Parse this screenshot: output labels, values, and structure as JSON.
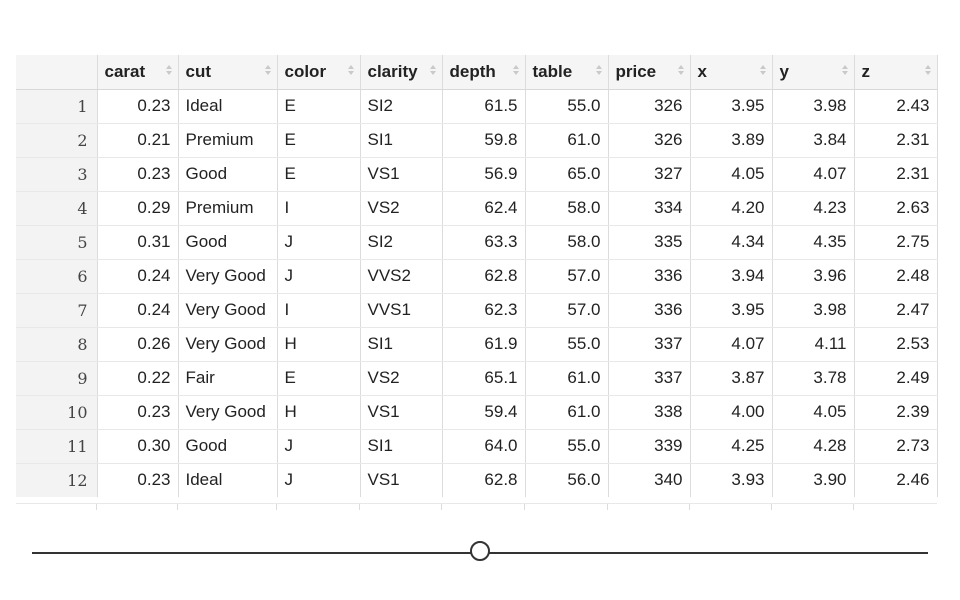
{
  "table": {
    "columns": [
      "carat",
      "cut",
      "color",
      "clarity",
      "depth",
      "table",
      "price",
      "x",
      "y",
      "z"
    ],
    "rows": [
      [
        "1",
        "0.23",
        "Ideal",
        "E",
        "SI2",
        "61.5",
        "55.0",
        "326",
        "3.95",
        "3.98",
        "2.43"
      ],
      [
        "2",
        "0.21",
        "Premium",
        "E",
        "SI1",
        "59.8",
        "61.0",
        "326",
        "3.89",
        "3.84",
        "2.31"
      ],
      [
        "3",
        "0.23",
        "Good",
        "E",
        "VS1",
        "56.9",
        "65.0",
        "327",
        "4.05",
        "4.07",
        "2.31"
      ],
      [
        "4",
        "0.29",
        "Premium",
        "I",
        "VS2",
        "62.4",
        "58.0",
        "334",
        "4.20",
        "4.23",
        "2.63"
      ],
      [
        "5",
        "0.31",
        "Good",
        "J",
        "SI2",
        "63.3",
        "58.0",
        "335",
        "4.34",
        "4.35",
        "2.75"
      ],
      [
        "6",
        "0.24",
        "Very Good",
        "J",
        "VVS2",
        "62.8",
        "57.0",
        "336",
        "3.94",
        "3.96",
        "2.48"
      ],
      [
        "7",
        "0.24",
        "Very Good",
        "I",
        "VVS1",
        "62.3",
        "57.0",
        "336",
        "3.95",
        "3.98",
        "2.47"
      ],
      [
        "8",
        "0.26",
        "Very Good",
        "H",
        "SI1",
        "61.9",
        "55.0",
        "337",
        "4.07",
        "4.11",
        "2.53"
      ],
      [
        "9",
        "0.22",
        "Fair",
        "E",
        "VS2",
        "65.1",
        "61.0",
        "337",
        "3.87",
        "3.78",
        "2.49"
      ],
      [
        "10",
        "0.23",
        "Very Good",
        "H",
        "VS1",
        "59.4",
        "61.0",
        "338",
        "4.00",
        "4.05",
        "2.39"
      ],
      [
        "11",
        "0.30",
        "Good",
        "J",
        "SI1",
        "64.0",
        "55.0",
        "339",
        "4.25",
        "4.28",
        "2.73"
      ],
      [
        "12",
        "0.23",
        "Ideal",
        "J",
        "VS1",
        "62.8",
        "56.0",
        "340",
        "3.93",
        "3.90",
        "2.46"
      ]
    ]
  },
  "slider": {
    "value_fraction": 0.5
  },
  "colors": {
    "header_bg": "#f5f5f5",
    "rownum_bg": "#f3f3f3",
    "border": "#dcdcdc",
    "slider": "#333333"
  },
  "icons": {
    "sort": "sort-arrows-icon",
    "slider_thumb": "slider-thumb-circle"
  }
}
